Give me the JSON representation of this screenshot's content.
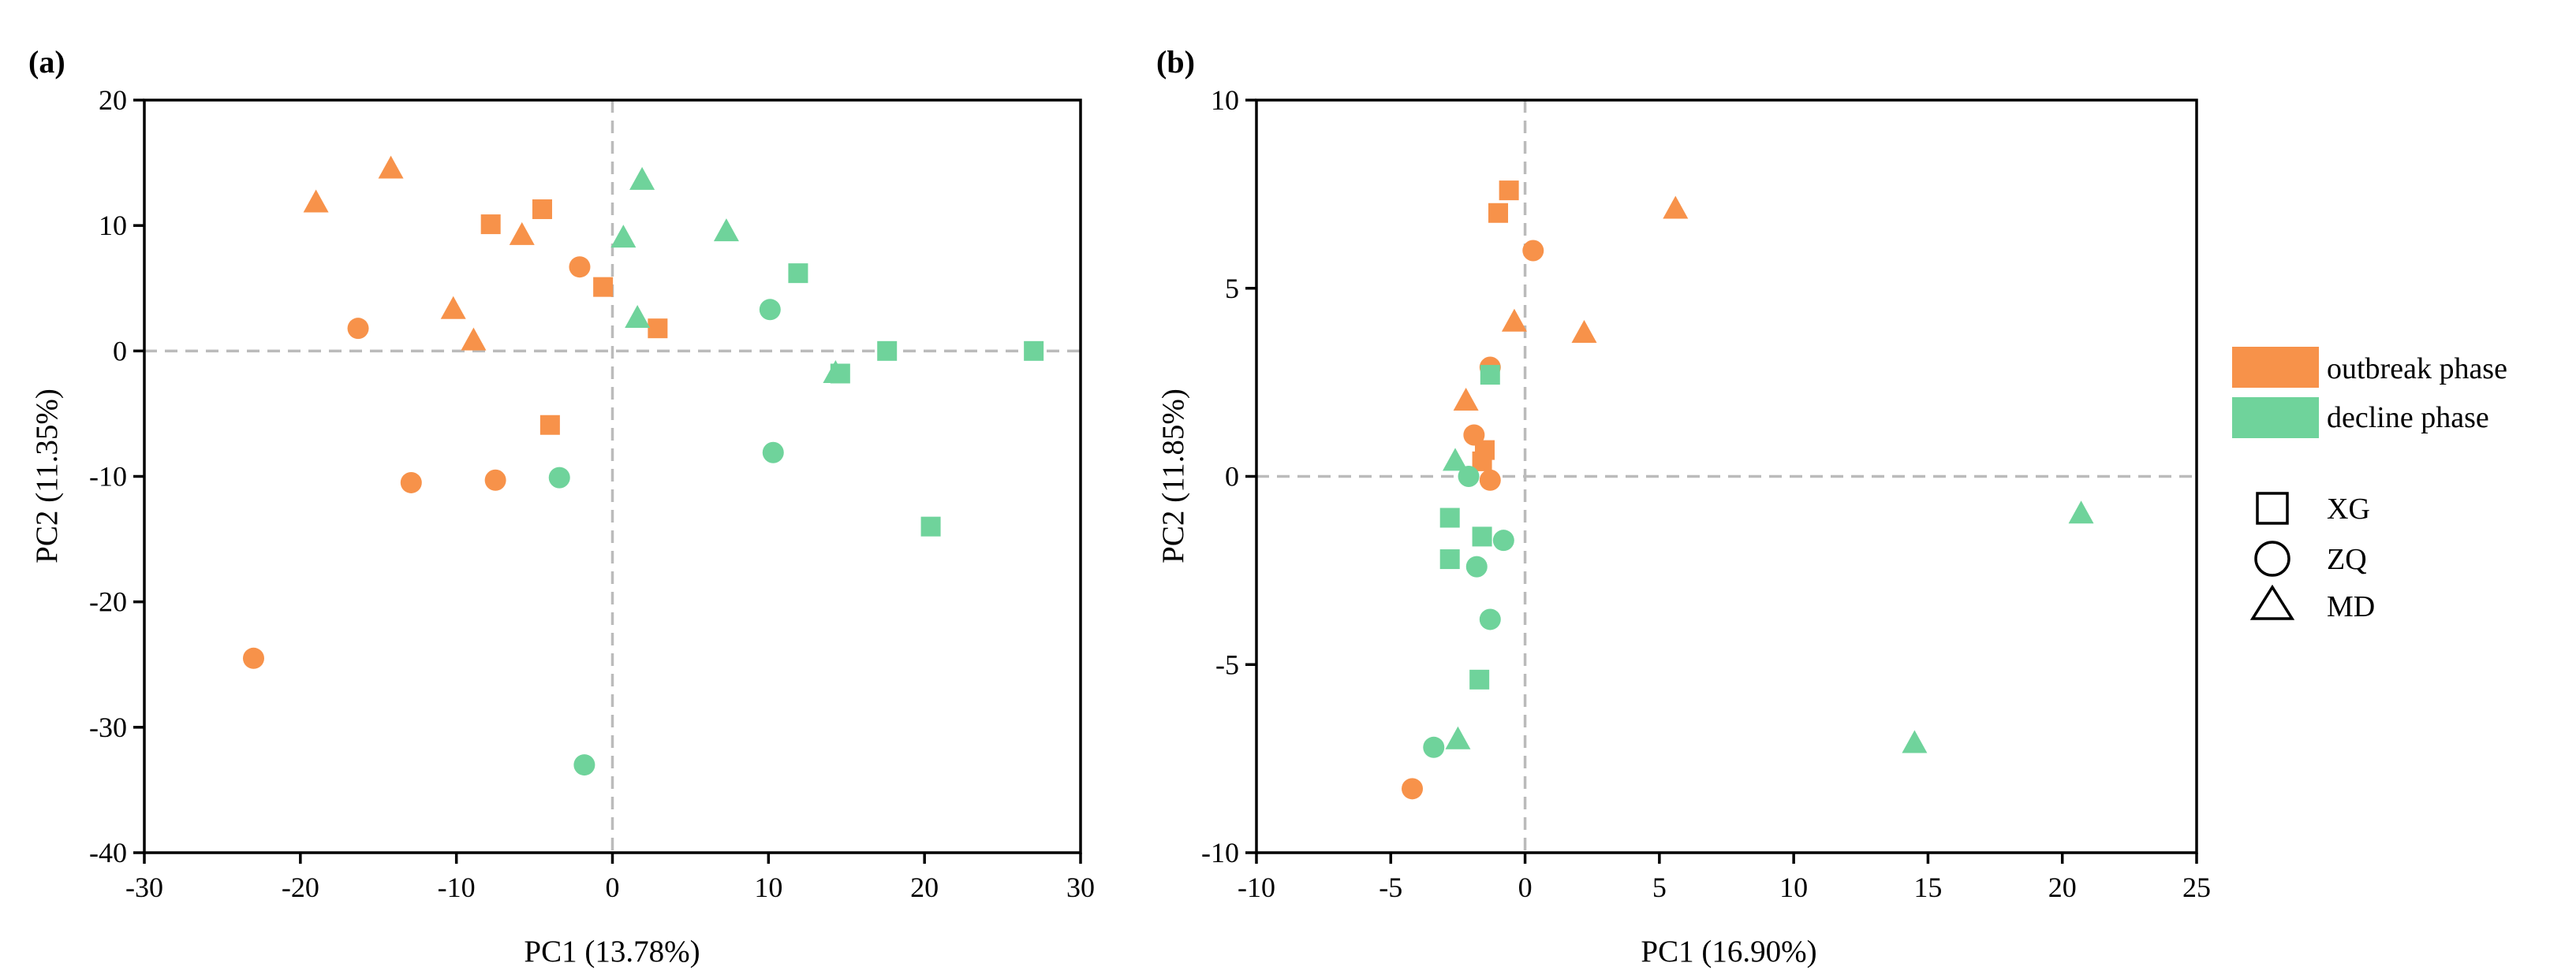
{
  "colors": {
    "outbreak": "#F7924A",
    "decline": "#6FD39B",
    "refline": "#BBBBBB",
    "axis": "#000000"
  },
  "legend": {
    "phases": [
      {
        "key": "outbreak",
        "label": "outbreak phase"
      },
      {
        "key": "decline",
        "label": "decline phase"
      }
    ],
    "shapes": [
      {
        "key": "XG",
        "label": "XG",
        "icon": "square-icon"
      },
      {
        "key": "ZQ",
        "label": "ZQ",
        "icon": "circle-icon"
      },
      {
        "key": "MD",
        "label": "MD",
        "icon": "triangle-icon"
      }
    ]
  },
  "chart_data": [
    {
      "type": "scatter",
      "panel_label": "(a)",
      "xlabel": "PC1 (13.78%)",
      "ylabel": "PC2 (11.35%)",
      "xlim": [
        -30,
        30
      ],
      "ylim": [
        -40,
        20
      ],
      "xticks": [
        -30,
        -20,
        -10,
        0,
        10,
        20,
        30
      ],
      "yticks": [
        -40,
        -30,
        -20,
        -10,
        0,
        10,
        20
      ],
      "reference_lines": {
        "x": 0,
        "y": 0
      },
      "points": [
        {
          "x": -19,
          "y": 11.8,
          "phase": "outbreak",
          "site": "MD"
        },
        {
          "x": -14.2,
          "y": 14.5,
          "phase": "outbreak",
          "site": "MD"
        },
        {
          "x": -5.8,
          "y": 9.2,
          "phase": "outbreak",
          "site": "MD"
        },
        {
          "x": -10.2,
          "y": 3.3,
          "phase": "outbreak",
          "site": "MD"
        },
        {
          "x": -8.9,
          "y": 0.8,
          "phase": "outbreak",
          "site": "MD"
        },
        {
          "x": -7.8,
          "y": 10.1,
          "phase": "outbreak",
          "site": "XG"
        },
        {
          "x": -4.5,
          "y": 11.3,
          "phase": "outbreak",
          "site": "XG"
        },
        {
          "x": -0.6,
          "y": 5.1,
          "phase": "outbreak",
          "site": "XG"
        },
        {
          "x": 2.9,
          "y": 1.8,
          "phase": "outbreak",
          "site": "XG"
        },
        {
          "x": -4,
          "y": -5.9,
          "phase": "outbreak",
          "site": "XG"
        },
        {
          "x": -2.1,
          "y": 6.7,
          "phase": "outbreak",
          "site": "ZQ"
        },
        {
          "x": -16.3,
          "y": 1.8,
          "phase": "outbreak",
          "site": "ZQ"
        },
        {
          "x": -12.9,
          "y": -10.5,
          "phase": "outbreak",
          "site": "ZQ"
        },
        {
          "x": -7.5,
          "y": -10.3,
          "phase": "outbreak",
          "site": "ZQ"
        },
        {
          "x": -23,
          "y": -24.5,
          "phase": "outbreak",
          "site": "ZQ"
        },
        {
          "x": 1.9,
          "y": 13.6,
          "phase": "decline",
          "site": "MD"
        },
        {
          "x": 0.7,
          "y": 9,
          "phase": "decline",
          "site": "MD"
        },
        {
          "x": 7.3,
          "y": 9.5,
          "phase": "decline",
          "site": "MD"
        },
        {
          "x": 1.6,
          "y": 2.6,
          "phase": "decline",
          "site": "MD"
        },
        {
          "x": 14.3,
          "y": -1.8,
          "phase": "decline",
          "site": "MD"
        },
        {
          "x": 11.9,
          "y": 6.2,
          "phase": "decline",
          "site": "XG"
        },
        {
          "x": 14.6,
          "y": -1.8,
          "phase": "decline",
          "site": "XG"
        },
        {
          "x": 17.6,
          "y": 0,
          "phase": "decline",
          "site": "XG"
        },
        {
          "x": 27,
          "y": 0,
          "phase": "decline",
          "site": "XG"
        },
        {
          "x": 20.4,
          "y": -14,
          "phase": "decline",
          "site": "XG"
        },
        {
          "x": 10.1,
          "y": 3.3,
          "phase": "decline",
          "site": "ZQ"
        },
        {
          "x": 10.3,
          "y": -8.1,
          "phase": "decline",
          "site": "ZQ"
        },
        {
          "x": -3.4,
          "y": -10.1,
          "phase": "decline",
          "site": "ZQ"
        },
        {
          "x": -1.8,
          "y": -33,
          "phase": "decline",
          "site": "ZQ"
        }
      ]
    },
    {
      "type": "scatter",
      "panel_label": "(b)",
      "xlabel": "PC1 (16.90%)",
      "ylabel": "PC2 (11.85%)",
      "xlim": [
        -10,
        25
      ],
      "ylim": [
        -10,
        10
      ],
      "xticks": [
        -10,
        -5,
        0,
        5,
        10,
        15,
        20,
        25
      ],
      "yticks": [
        -10,
        -5,
        0,
        5,
        10
      ],
      "reference_lines": {
        "x": 0,
        "y": 0
      },
      "points": [
        {
          "x": -0.6,
          "y": 7.6,
          "phase": "outbreak",
          "site": "XG"
        },
        {
          "x": -1,
          "y": 7,
          "phase": "outbreak",
          "site": "XG"
        },
        {
          "x": -1.5,
          "y": 0.7,
          "phase": "outbreak",
          "site": "XG"
        },
        {
          "x": -1.6,
          "y": 0.4,
          "phase": "outbreak",
          "site": "XG"
        },
        {
          "x": 0.3,
          "y": 6,
          "phase": "outbreak",
          "site": "ZQ"
        },
        {
          "x": -1.3,
          "y": 2.9,
          "phase": "outbreak",
          "site": "ZQ"
        },
        {
          "x": -1.9,
          "y": 1.1,
          "phase": "outbreak",
          "site": "ZQ"
        },
        {
          "x": -1.3,
          "y": -0.1,
          "phase": "outbreak",
          "site": "ZQ"
        },
        {
          "x": -4.2,
          "y": -8.3,
          "phase": "outbreak",
          "site": "ZQ"
        },
        {
          "x": 5.6,
          "y": 7.1,
          "phase": "outbreak",
          "site": "MD"
        },
        {
          "x": 2.2,
          "y": 3.8,
          "phase": "outbreak",
          "site": "MD"
        },
        {
          "x": -0.4,
          "y": 4.1,
          "phase": "outbreak",
          "site": "MD"
        },
        {
          "x": -2.2,
          "y": 2,
          "phase": "outbreak",
          "site": "MD"
        },
        {
          "x": -1.3,
          "y": 2.7,
          "phase": "decline",
          "site": "XG"
        },
        {
          "x": -2.8,
          "y": -1.1,
          "phase": "decline",
          "site": "XG"
        },
        {
          "x": -1.6,
          "y": -1.6,
          "phase": "decline",
          "site": "XG"
        },
        {
          "x": -2.8,
          "y": -2.2,
          "phase": "decline",
          "site": "XG"
        },
        {
          "x": -1.7,
          "y": -5.4,
          "phase": "decline",
          "site": "XG"
        },
        {
          "x": -2.1,
          "y": 0,
          "phase": "decline",
          "site": "ZQ"
        },
        {
          "x": -0.8,
          "y": -1.7,
          "phase": "decline",
          "site": "ZQ"
        },
        {
          "x": -1.8,
          "y": -2.4,
          "phase": "decline",
          "site": "ZQ"
        },
        {
          "x": -1.3,
          "y": -3.8,
          "phase": "decline",
          "site": "ZQ"
        },
        {
          "x": -3.4,
          "y": -7.2,
          "phase": "decline",
          "site": "ZQ"
        },
        {
          "x": -2.6,
          "y": 0.4,
          "phase": "decline",
          "site": "MD"
        },
        {
          "x": -2.5,
          "y": -7,
          "phase": "decline",
          "site": "MD"
        },
        {
          "x": 14.5,
          "y": -7.1,
          "phase": "decline",
          "site": "MD"
        },
        {
          "x": 20.7,
          "y": -1,
          "phase": "decline",
          "site": "MD"
        }
      ]
    }
  ]
}
